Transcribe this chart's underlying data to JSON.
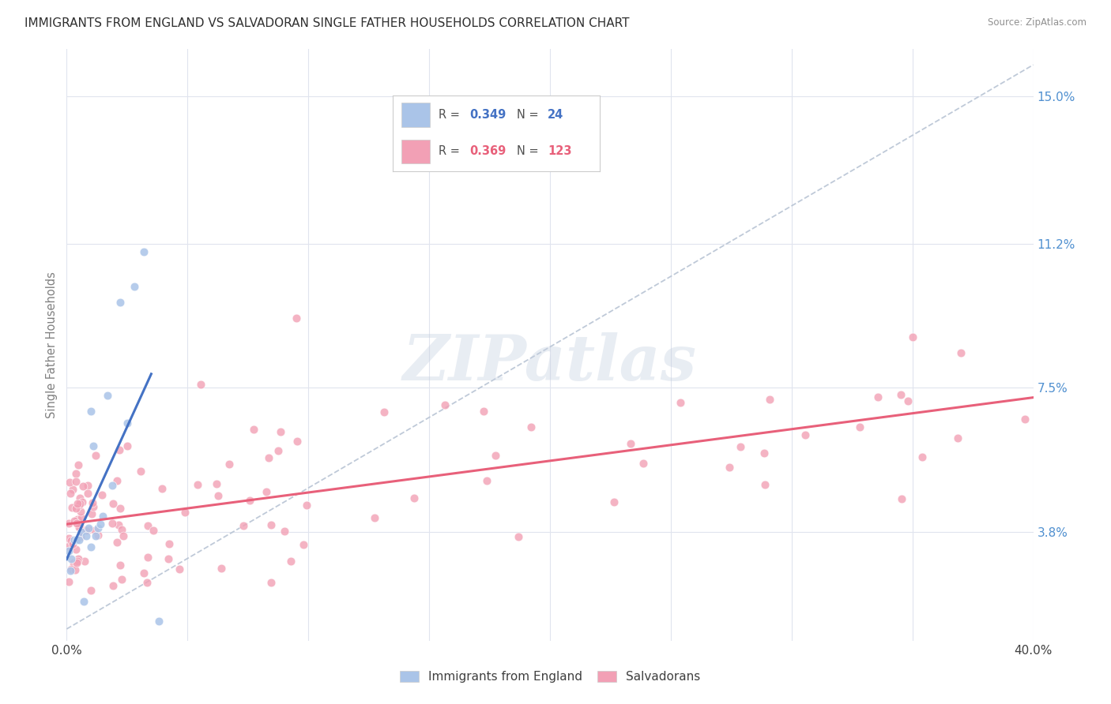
{
  "title": "IMMIGRANTS FROM ENGLAND VS SALVADORAN SINGLE FATHER HOUSEHOLDS CORRELATION CHART",
  "source": "Source: ZipAtlas.com",
  "ylabel": "Single Father Households",
  "yticks": [
    "3.8%",
    "7.5%",
    "11.2%",
    "15.0%"
  ],
  "ytick_vals": [
    0.038,
    0.075,
    0.112,
    0.15
  ],
  "xmin": 0.0,
  "xmax": 0.4,
  "ymin": 0.01,
  "ymax": 0.162,
  "legend_england_r": "0.349",
  "legend_england_n": "24",
  "legend_salvador_r": "0.369",
  "legend_salvador_n": "123",
  "color_england": "#aac4e8",
  "color_salvador": "#f2a0b5",
  "color_england_line": "#4472c4",
  "color_salvador_line": "#e8607a",
  "color_dashed": "#b8c4d4",
  "watermark": "ZIPatlas",
  "background_color": "#ffffff",
  "grid_color": "#e0e4ee",
  "title_color": "#303030",
  "axis_label_color": "#5090d0",
  "ylabel_color": "#808080",
  "legend_label_color": "#505050"
}
